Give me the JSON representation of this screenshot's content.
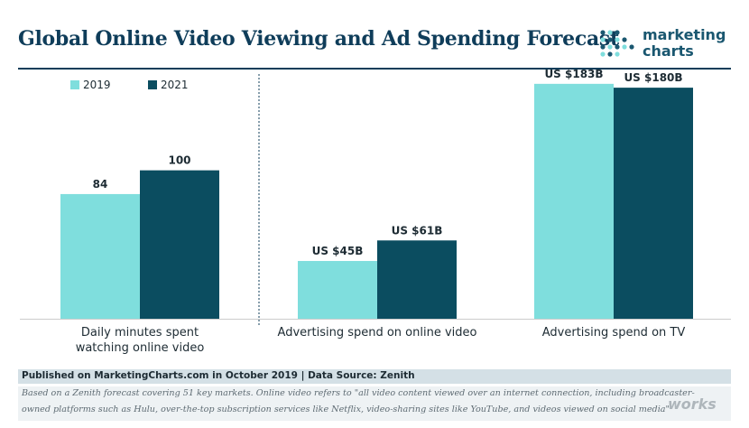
{
  "header": {
    "title": "Global Online Video Viewing and Ad Spending Forecast",
    "logo_line1": "marketing",
    "logo_line2": "charts"
  },
  "chart_data": {
    "type": "bar",
    "title": "Global Online Video Viewing and Ad Spending Forecast",
    "legend_position": "top-left",
    "colors": {
      "2019": "#7fdedd",
      "2021": "#0b4d60",
      "text": "#1d2b33",
      "axis": "#cccccc",
      "divider": "#0f3d5a"
    },
    "series": [
      {
        "name": "2019",
        "color": "#7fdedd"
      },
      {
        "name": "2021",
        "color": "#0b4d60"
      }
    ],
    "groups": [
      {
        "label_lines": [
          "Daily minutes spent",
          "watching online video"
        ],
        "categories": [
          "Daily minutes spent watching online video"
        ],
        "values": [
          84,
          100
        ],
        "data_labels": [
          "84",
          "100"
        ],
        "ylim": [
          0,
          160
        ]
      },
      {
        "label_lines": [
          "Advertising spend on online video"
        ],
        "categories": [
          "Advertising spend on online video"
        ],
        "values": [
          45,
          61
        ],
        "data_labels": [
          "US $45B",
          "US $61B"
        ],
        "ylim": [
          0,
          185
        ]
      },
      {
        "label_lines": [
          "Advertising spend on TV"
        ],
        "categories": [
          "Advertising spend on TV"
        ],
        "values": [
          183,
          180
        ],
        "data_labels": [
          "US $183B",
          "US $180B"
        ],
        "ylim": [
          0,
          185
        ]
      }
    ]
  },
  "footer": {
    "source": "Published on MarketingCharts.com in October 2019 | Data Source: Zenith",
    "note_line1": "Based on a Zenith forecast covering 51 key markets. Online video refers to \"all video content viewed over an internet connection, including broadcaster-",
    "note_line2": "owned platforms such as Hulu, over-the-top subscription services like Netflix, video-sharing sites like YouTube, and videos viewed on social media\"",
    "watermark": "works"
  }
}
